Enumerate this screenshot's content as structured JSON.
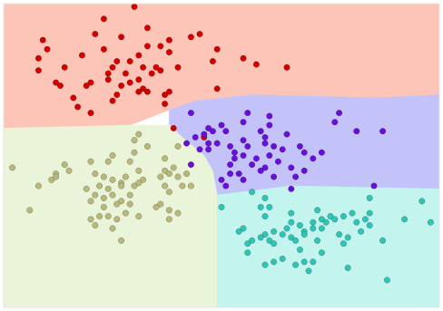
{
  "chart_data": {
    "type": "scatter",
    "title": "",
    "xlabel": "",
    "ylabel": "",
    "grid": false,
    "legend": "none",
    "xlim": [
      0,
      1
    ],
    "ylim": [
      0,
      1
    ],
    "regions": [
      {
        "class": "red",
        "color": "#fcc5b8",
        "polygon": [
          [
            0.0,
            1.0
          ],
          [
            1.0,
            1.0
          ],
          [
            1.0,
            0.7
          ],
          [
            0.86,
            0.69
          ],
          [
            0.57,
            0.7
          ],
          [
            0.44,
            0.68
          ],
          [
            0.38,
            0.65
          ],
          [
            0.29,
            0.6
          ],
          [
            0.0,
            0.59
          ]
        ]
      },
      {
        "class": "purple",
        "color": "#c3c3fa",
        "polygon": [
          [
            0.44,
            0.68
          ],
          [
            0.57,
            0.7
          ],
          [
            0.86,
            0.69
          ],
          [
            1.0,
            0.7
          ],
          [
            1.0,
            0.39
          ],
          [
            0.66,
            0.4
          ],
          [
            0.49,
            0.37
          ],
          [
            0.48,
            0.45
          ],
          [
            0.46,
            0.5
          ],
          [
            0.41,
            0.56
          ],
          [
            0.38,
            0.6
          ],
          [
            0.38,
            0.65
          ]
        ]
      },
      {
        "class": "olive",
        "color": "#eaf4d9",
        "polygon": [
          [
            0.0,
            0.59
          ],
          [
            0.29,
            0.6
          ],
          [
            0.38,
            0.6
          ],
          [
            0.41,
            0.56
          ],
          [
            0.46,
            0.5
          ],
          [
            0.48,
            0.45
          ],
          [
            0.49,
            0.37
          ],
          [
            0.49,
            0.0
          ],
          [
            0.0,
            0.0
          ]
        ]
      },
      {
        "class": "teal",
        "color": "#c3f5ee",
        "polygon": [
          [
            0.49,
            0.37
          ],
          [
            0.66,
            0.4
          ],
          [
            1.0,
            0.39
          ],
          [
            1.0,
            0.0
          ],
          [
            0.49,
            0.0
          ]
        ]
      }
    ],
    "series": [
      {
        "class": "red",
        "color": "#d40000",
        "points": [
          [
            0.3,
            0.99
          ],
          [
            0.23,
            0.95
          ],
          [
            0.33,
            0.92
          ],
          [
            0.27,
            0.89
          ],
          [
            0.21,
            0.9
          ],
          [
            0.45,
            0.9
          ],
          [
            0.09,
            0.88
          ],
          [
            0.43,
            0.89
          ],
          [
            0.38,
            0.88
          ],
          [
            0.36,
            0.86
          ],
          [
            0.1,
            0.85
          ],
          [
            0.23,
            0.85
          ],
          [
            0.33,
            0.86
          ],
          [
            0.49,
            0.85
          ],
          [
            0.18,
            0.83
          ],
          [
            0.31,
            0.83
          ],
          [
            0.38,
            0.84
          ],
          [
            0.48,
            0.81
          ],
          [
            0.26,
            0.81
          ],
          [
            0.08,
            0.82
          ],
          [
            0.29,
            0.81
          ],
          [
            0.14,
            0.79
          ],
          [
            0.35,
            0.79
          ],
          [
            0.32,
            0.79
          ],
          [
            0.25,
            0.79
          ],
          [
            0.24,
            0.77
          ],
          [
            0.08,
            0.78
          ],
          [
            0.34,
            0.77
          ],
          [
            0.36,
            0.78
          ],
          [
            0.58,
            0.8
          ],
          [
            0.65,
            0.79
          ],
          [
            0.4,
            0.79
          ],
          [
            0.55,
            0.82
          ],
          [
            0.28,
            0.77
          ],
          [
            0.24,
            0.75
          ],
          [
            0.31,
            0.75
          ],
          [
            0.2,
            0.74
          ],
          [
            0.12,
            0.74
          ],
          [
            0.13,
            0.73
          ],
          [
            0.19,
            0.73
          ],
          [
            0.29,
            0.74
          ],
          [
            0.27,
            0.73
          ],
          [
            0.32,
            0.72
          ],
          [
            0.31,
            0.71
          ],
          [
            0.38,
            0.71
          ],
          [
            0.49,
            0.72
          ],
          [
            0.33,
            0.71
          ],
          [
            0.26,
            0.7
          ],
          [
            0.25,
            0.68
          ],
          [
            0.16,
            0.69
          ],
          [
            0.17,
            0.66
          ],
          [
            0.37,
            0.7
          ],
          [
            0.37,
            0.67
          ],
          [
            0.2,
            0.64
          ],
          [
            0.39,
            0.59
          ],
          [
            0.46,
            0.56
          ]
        ]
      },
      {
        "class": "purple",
        "color": "#6a0fd9",
        "points": [
          [
            0.43,
            0.64
          ],
          [
            0.56,
            0.64
          ],
          [
            0.55,
            0.61
          ],
          [
            0.61,
            0.63
          ],
          [
            0.77,
            0.64
          ],
          [
            0.61,
            0.6
          ],
          [
            0.5,
            0.6
          ],
          [
            0.51,
            0.58
          ],
          [
            0.47,
            0.59
          ],
          [
            0.46,
            0.57
          ],
          [
            0.48,
            0.58
          ],
          [
            0.59,
            0.58
          ],
          [
            0.76,
            0.61
          ],
          [
            0.81,
            0.58
          ],
          [
            0.87,
            0.58
          ],
          [
            0.65,
            0.57
          ],
          [
            0.6,
            0.56
          ],
          [
            0.62,
            0.53
          ],
          [
            0.55,
            0.55
          ],
          [
            0.44,
            0.56
          ],
          [
            0.47,
            0.54
          ],
          [
            0.52,
            0.53
          ],
          [
            0.56,
            0.53
          ],
          [
            0.6,
            0.54
          ],
          [
            0.64,
            0.52
          ],
          [
            0.68,
            0.53
          ],
          [
            0.69,
            0.51
          ],
          [
            0.42,
            0.54
          ],
          [
            0.45,
            0.52
          ],
          [
            0.47,
            0.52
          ],
          [
            0.49,
            0.54
          ],
          [
            0.53,
            0.51
          ],
          [
            0.55,
            0.5
          ],
          [
            0.58,
            0.49
          ],
          [
            0.61,
            0.5
          ],
          [
            0.63,
            0.48
          ],
          [
            0.66,
            0.46
          ],
          [
            0.71,
            0.49
          ],
          [
            0.73,
            0.51
          ],
          [
            0.53,
            0.49
          ],
          [
            0.52,
            0.47
          ],
          [
            0.57,
            0.47
          ],
          [
            0.6,
            0.46
          ],
          [
            0.59,
            0.45
          ],
          [
            0.62,
            0.43
          ],
          [
            0.67,
            0.43
          ],
          [
            0.69,
            0.45
          ],
          [
            0.52,
            0.44
          ],
          [
            0.5,
            0.42
          ],
          [
            0.51,
            0.4
          ],
          [
            0.55,
            0.42
          ],
          [
            0.54,
            0.44
          ],
          [
            0.66,
            0.39
          ],
          [
            0.85,
            0.4
          ],
          [
            0.43,
            0.47
          ]
        ]
      },
      {
        "class": "olive",
        "color": "#b8b87a",
        "points": [
          [
            0.31,
            0.57
          ],
          [
            0.3,
            0.55
          ],
          [
            0.33,
            0.53
          ],
          [
            0.4,
            0.53
          ],
          [
            0.25,
            0.5
          ],
          [
            0.3,
            0.51
          ],
          [
            0.37,
            0.49
          ],
          [
            0.24,
            0.48
          ],
          [
            0.29,
            0.48
          ],
          [
            0.2,
            0.48
          ],
          [
            0.02,
            0.46
          ],
          [
            0.14,
            0.47
          ],
          [
            0.39,
            0.46
          ],
          [
            0.37,
            0.45
          ],
          [
            0.42,
            0.44
          ],
          [
            0.31,
            0.45
          ],
          [
            0.21,
            0.44
          ],
          [
            0.12,
            0.44
          ],
          [
            0.15,
            0.45
          ],
          [
            0.12,
            0.43
          ],
          [
            0.4,
            0.43
          ],
          [
            0.38,
            0.44
          ],
          [
            0.36,
            0.43
          ],
          [
            0.32,
            0.42
          ],
          [
            0.28,
            0.43
          ],
          [
            0.27,
            0.41
          ],
          [
            0.25,
            0.42
          ],
          [
            0.23,
            0.43
          ],
          [
            0.11,
            0.42
          ],
          [
            0.08,
            0.4
          ],
          [
            0.3,
            0.4
          ],
          [
            0.31,
            0.41
          ],
          [
            0.27,
            0.4
          ],
          [
            0.24,
            0.39
          ],
          [
            0.22,
            0.4
          ],
          [
            0.19,
            0.39
          ],
          [
            0.37,
            0.4
          ],
          [
            0.41,
            0.4
          ],
          [
            0.43,
            0.4
          ],
          [
            0.38,
            0.38
          ],
          [
            0.29,
            0.37
          ],
          [
            0.25,
            0.37
          ],
          [
            0.23,
            0.36
          ],
          [
            0.21,
            0.37
          ],
          [
            0.2,
            0.35
          ],
          [
            0.27,
            0.35
          ],
          [
            0.26,
            0.34
          ],
          [
            0.29,
            0.34
          ],
          [
            0.23,
            0.33
          ],
          [
            0.36,
            0.34
          ],
          [
            0.35,
            0.33
          ],
          [
            0.38,
            0.32
          ],
          [
            0.4,
            0.31
          ],
          [
            0.31,
            0.3
          ],
          [
            0.28,
            0.31
          ],
          [
            0.24,
            0.3
          ],
          [
            0.22,
            0.3
          ],
          [
            0.06,
            0.32
          ],
          [
            0.2,
            0.29
          ],
          [
            0.26,
            0.29
          ],
          [
            0.38,
            0.29
          ],
          [
            0.25,
            0.26
          ],
          [
            0.21,
            0.27
          ],
          [
            0.27,
            0.22
          ]
        ]
      },
      {
        "class": "teal",
        "color": "#2ec4b6",
        "points": [
          [
            0.57,
            0.38
          ],
          [
            0.6,
            0.36
          ],
          [
            0.59,
            0.33
          ],
          [
            0.61,
            0.33
          ],
          [
            0.5,
            0.33
          ],
          [
            0.84,
            0.36
          ],
          [
            0.96,
            0.35
          ],
          [
            0.8,
            0.31
          ],
          [
            0.84,
            0.31
          ],
          [
            0.6,
            0.3
          ],
          [
            0.66,
            0.31
          ],
          [
            0.78,
            0.3
          ],
          [
            0.75,
            0.3
          ],
          [
            0.72,
            0.32
          ],
          [
            0.73,
            0.29
          ],
          [
            0.66,
            0.28
          ],
          [
            0.68,
            0.27
          ],
          [
            0.71,
            0.28
          ],
          [
            0.76,
            0.29
          ],
          [
            0.81,
            0.28
          ],
          [
            0.83,
            0.29
          ],
          [
            0.92,
            0.29
          ],
          [
            0.98,
            0.28
          ],
          [
            0.62,
            0.25
          ],
          [
            0.65,
            0.26
          ],
          [
            0.69,
            0.25
          ],
          [
            0.71,
            0.26
          ],
          [
            0.73,
            0.26
          ],
          [
            0.74,
            0.28
          ],
          [
            0.6,
            0.24
          ],
          [
            0.55,
            0.26
          ],
          [
            0.54,
            0.25
          ],
          [
            0.59,
            0.23
          ],
          [
            0.64,
            0.24
          ],
          [
            0.66,
            0.23
          ],
          [
            0.67,
            0.22
          ],
          [
            0.79,
            0.23
          ],
          [
            0.82,
            0.25
          ],
          [
            0.84,
            0.27
          ],
          [
            0.87,
            0.22
          ],
          [
            0.57,
            0.22
          ],
          [
            0.61,
            0.22
          ],
          [
            0.62,
            0.21
          ],
          [
            0.69,
            0.24
          ],
          [
            0.72,
            0.22
          ],
          [
            0.77,
            0.24
          ],
          [
            0.56,
            0.21
          ],
          [
            0.68,
            0.19
          ],
          [
            0.73,
            0.18
          ],
          [
            0.78,
            0.21
          ],
          [
            0.56,
            0.18
          ],
          [
            0.6,
            0.14
          ],
          [
            0.62,
            0.15
          ],
          [
            0.64,
            0.16
          ],
          [
            0.67,
            0.14
          ],
          [
            0.69,
            0.15
          ],
          [
            0.71,
            0.15
          ],
          [
            0.7,
            0.12
          ],
          [
            0.79,
            0.13
          ],
          [
            0.88,
            0.09
          ]
        ]
      }
    ]
  }
}
